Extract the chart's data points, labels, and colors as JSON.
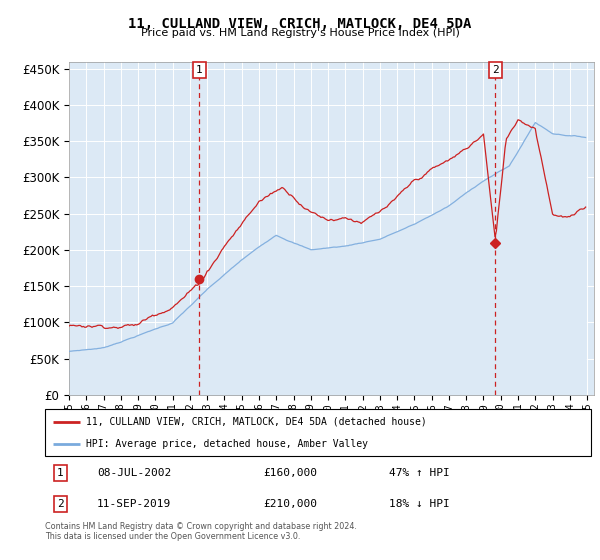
{
  "title": "11, CULLAND VIEW, CRICH, MATLOCK, DE4 5DA",
  "subtitle": "Price paid vs. HM Land Registry's House Price Index (HPI)",
  "legend_line1": "11, CULLAND VIEW, CRICH, MATLOCK, DE4 5DA (detached house)",
  "legend_line2": "HPI: Average price, detached house, Amber Valley",
  "sale1_date": "08-JUL-2002",
  "sale1_price": 160000,
  "sale1_pct": "47% ↑ HPI",
  "sale1_year": 2002.53,
  "sale2_date": "11-SEP-2019",
  "sale2_price": 210000,
  "sale2_pct": "18% ↓ HPI",
  "sale2_year": 2019.69,
  "ylim": [
    0,
    460000
  ],
  "xlim_start": 1995,
  "xlim_end": 2025.4,
  "yticks": [
    0,
    50000,
    100000,
    150000,
    200000,
    250000,
    300000,
    350000,
    400000,
    450000
  ],
  "footer": "Contains HM Land Registry data © Crown copyright and database right 2024.\nThis data is licensed under the Open Government Licence v3.0.",
  "bg_color": "#ffffff",
  "plot_bg_color": "#dce9f5",
  "grid_color": "#ffffff",
  "property_color": "#cc2222",
  "hpi_color": "#7aaadd"
}
